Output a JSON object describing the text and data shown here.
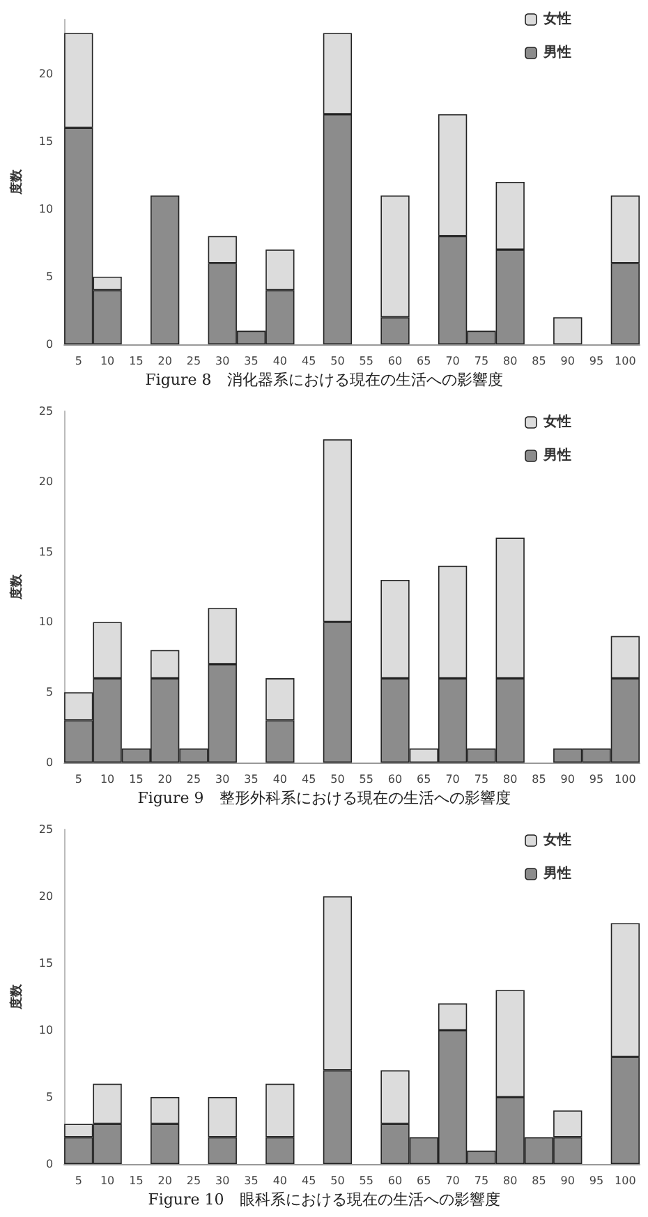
{
  "chart_data": [
    {
      "type": "bar",
      "title": "Figure 8　消化器系における現在の生活への影響度",
      "ylabel": "度数",
      "stacked": true,
      "legend": "top right",
      "grid": false,
      "categories": [
        "5",
        "10",
        "15",
        "20",
        "25",
        "30",
        "35",
        "40",
        "45",
        "50",
        "55",
        "60",
        "65",
        "70",
        "75",
        "80",
        "85",
        "90",
        "95",
        "100"
      ],
      "ylim": [
        0,
        24
      ],
      "yticks": [
        0,
        5,
        10,
        15,
        20
      ],
      "series": [
        {
          "name": "男性",
          "color": "#8c8c8c",
          "values": [
            16,
            4,
            0,
            11,
            0,
            6,
            1,
            4,
            0,
            17,
            0,
            2,
            0,
            8,
            1,
            7,
            0,
            0,
            0,
            6
          ]
        },
        {
          "name": "女性",
          "color": "#dcdcdc",
          "values": [
            7,
            1,
            0,
            0,
            0,
            2,
            0,
            3,
            0,
            6,
            0,
            9,
            0,
            9,
            0,
            5,
            0,
            2,
            0,
            5
          ]
        }
      ]
    },
    {
      "type": "bar",
      "title": "Figure 9　整形外科系における現在の生活への影響度",
      "ylabel": "度数",
      "stacked": true,
      "legend": "top right",
      "grid": false,
      "categories": [
        "5",
        "10",
        "15",
        "20",
        "25",
        "30",
        "35",
        "40",
        "45",
        "50",
        "55",
        "60",
        "65",
        "70",
        "75",
        "80",
        "85",
        "90",
        "95",
        "100"
      ],
      "ylim": [
        0,
        25
      ],
      "yticks": [
        0,
        5,
        10,
        15,
        20,
        25
      ],
      "series": [
        {
          "name": "男性",
          "color": "#8c8c8c",
          "values": [
            3,
            6,
            1,
            6,
            1,
            7,
            0,
            3,
            0,
            10,
            0,
            6,
            0,
            6,
            1,
            6,
            0,
            1,
            1,
            6
          ]
        },
        {
          "name": "女性",
          "color": "#dcdcdc",
          "values": [
            2,
            4,
            0,
            2,
            0,
            4,
            0,
            3,
            0,
            13,
            0,
            7,
            1,
            8,
            0,
            10,
            0,
            0,
            0,
            3
          ]
        }
      ]
    },
    {
      "type": "bar",
      "title": "Figure 10　眼科系における現在の生活への影響度",
      "ylabel": "度数",
      "stacked": true,
      "legend": "top right",
      "grid": false,
      "categories": [
        "5",
        "10",
        "15",
        "20",
        "25",
        "30",
        "35",
        "40",
        "45",
        "50",
        "55",
        "60",
        "65",
        "70",
        "75",
        "80",
        "85",
        "90",
        "95",
        "100"
      ],
      "ylim": [
        0,
        25
      ],
      "yticks": [
        0,
        5,
        10,
        15,
        20,
        25
      ],
      "series": [
        {
          "name": "男性",
          "color": "#8c8c8c",
          "values": [
            2,
            3,
            0,
            3,
            0,
            2,
            0,
            2,
            0,
            7,
            0,
            3,
            2,
            10,
            1,
            5,
            2,
            2,
            0,
            8
          ]
        },
        {
          "name": "女性",
          "color": "#dcdcdc",
          "values": [
            1,
            3,
            0,
            2,
            0,
            3,
            0,
            4,
            0,
            13,
            0,
            4,
            0,
            2,
            0,
            8,
            0,
            2,
            0,
            10
          ]
        }
      ]
    }
  ]
}
